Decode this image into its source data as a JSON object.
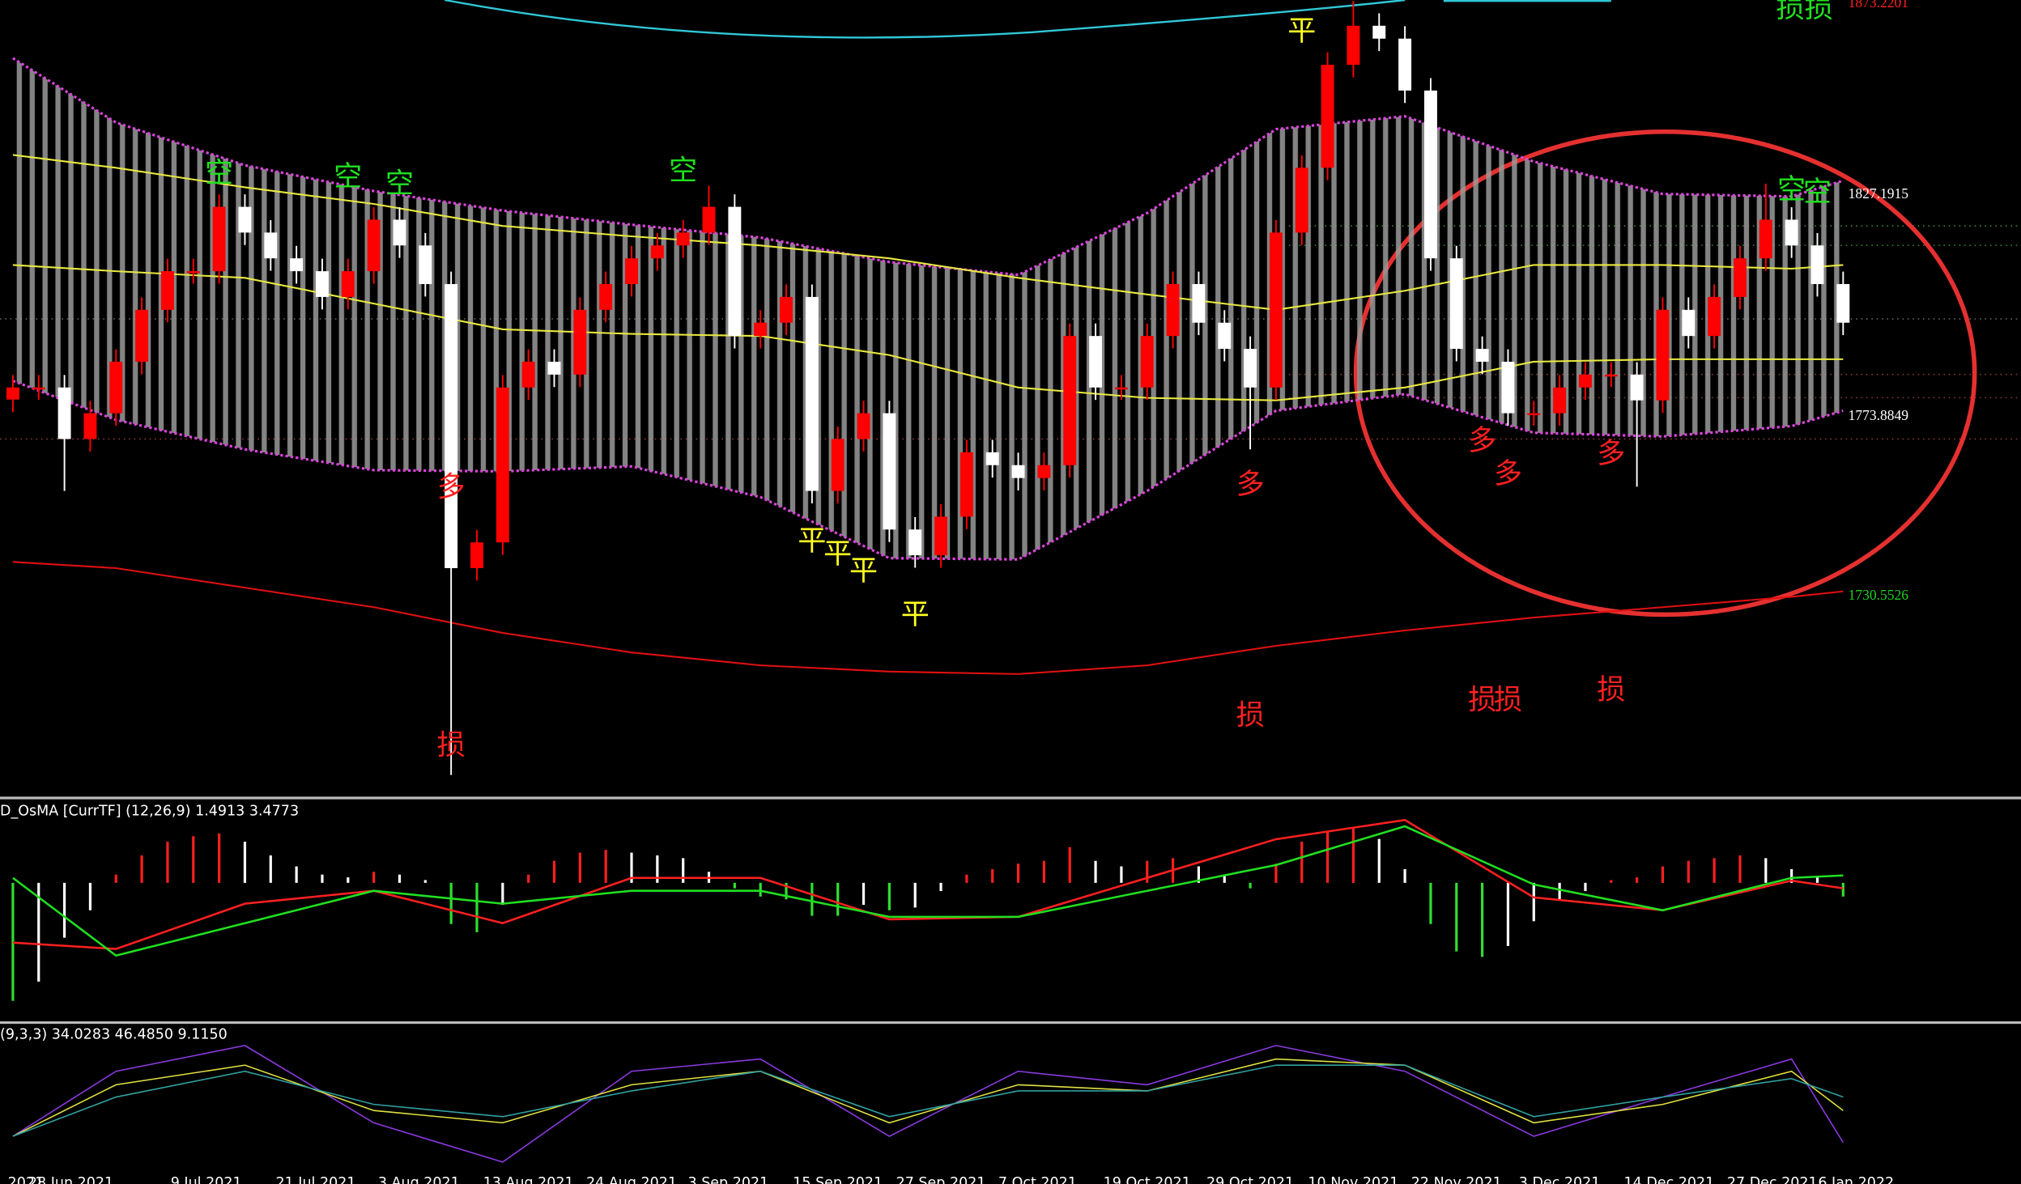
{
  "chart_data": [
    {
      "type": "candlestick",
      "up_color": "#ff0000",
      "down_color": "#ffffff",
      "ylim": [
        1683,
        1874.2
      ],
      "open": [
        1778.0,
        1780.9,
        1780.9,
        1768.5,
        1774.7,
        1787.1,
        1799.6,
        1808.9,
        1808.9,
        1824.4,
        1818.2,
        1812.0,
        1808.9,
        1802.7,
        1808.9,
        1821.3,
        1815.1,
        1805.8,
        1737.4,
        1743.6,
        1780.9,
        1787.1,
        1784.0,
        1799.6,
        1805.8,
        1812.0,
        1815.1,
        1818.2,
        1824.4,
        1793.3,
        1796.5,
        1802.7,
        1756.0,
        1768.5,
        1774.7,
        1746.7,
        1740.5,
        1749.8,
        1765.3,
        1762.2,
        1759.1,
        1762.2,
        1793.3,
        1780.9,
        1780.9,
        1793.3,
        1805.8,
        1796.5,
        1790.2,
        1780.9,
        1818.2,
        1833.8,
        1858.6,
        1868.0,
        1864.9,
        1852.4,
        1812.0,
        1790.2,
        1787.1,
        1774.7,
        1774.7,
        1780.9,
        1784.0,
        1784.0,
        1777.8,
        1799.6,
        1793.3,
        1802.7,
        1812.0,
        1821.3,
        1815.1,
        1805.8
      ],
      "high": [
        1783.9,
        1783.9,
        1783.9,
        1777.7,
        1790.1,
        1802.6,
        1811.9,
        1811.9,
        1827.4,
        1827.4,
        1821.2,
        1815.0,
        1811.9,
        1811.9,
        1824.3,
        1824.3,
        1818.1,
        1808.8,
        1746.6,
        1783.9,
        1790.1,
        1790.1,
        1802.6,
        1808.8,
        1815.0,
        1818.1,
        1821.2,
        1829.5,
        1827.4,
        1799.5,
        1805.7,
        1805.7,
        1771.5,
        1777.7,
        1777.7,
        1749.7,
        1752.8,
        1768.3,
        1768.3,
        1765.2,
        1765.2,
        1796.3,
        1796.3,
        1783.9,
        1796.3,
        1808.8,
        1808.8,
        1799.5,
        1793.2,
        1821.2,
        1836.8,
        1861.6,
        1874.0,
        1871.0,
        1867.9,
        1855.4,
        1815.0,
        1793.2,
        1790.1,
        1777.7,
        1783.9,
        1787.0,
        1787.0,
        1787.0,
        1802.6,
        1802.6,
        1805.7,
        1815.0,
        1830.0,
        1824.3,
        1818.1,
        1808.8
      ],
      "low": [
        1775.0,
        1777.9,
        1756.0,
        1765.5,
        1771.7,
        1784.1,
        1796.6,
        1805.9,
        1805.9,
        1815.2,
        1809.0,
        1805.9,
        1799.7,
        1799.7,
        1805.9,
        1812.1,
        1802.8,
        1687.6,
        1734.4,
        1740.6,
        1777.9,
        1781.0,
        1781.0,
        1796.6,
        1802.8,
        1809.0,
        1812.1,
        1815.2,
        1790.3,
        1790.3,
        1793.5,
        1753.0,
        1753.0,
        1765.5,
        1743.7,
        1737.5,
        1737.5,
        1746.8,
        1759.2,
        1756.1,
        1756.1,
        1759.2,
        1777.9,
        1777.9,
        1777.9,
        1790.3,
        1793.5,
        1787.2,
        1766.0,
        1777.9,
        1815.2,
        1830.8,
        1855.6,
        1861.9,
        1849.4,
        1809.0,
        1787.2,
        1784.1,
        1771.7,
        1771.7,
        1771.7,
        1777.9,
        1781.0,
        1757.0,
        1774.8,
        1790.3,
        1790.3,
        1799.7,
        1809.0,
        1812.1,
        1802.8,
        1793.5
      ],
      "close": [
        1780.9,
        1780.9,
        1768.5,
        1774.7,
        1787.1,
        1799.6,
        1808.9,
        1808.9,
        1824.4,
        1818.2,
        1812.0,
        1808.9,
        1802.7,
        1808.9,
        1821.3,
        1815.1,
        1805.8,
        1737.4,
        1743.6,
        1780.9,
        1787.1,
        1784.0,
        1799.6,
        1805.8,
        1812.0,
        1815.1,
        1818.2,
        1824.4,
        1793.3,
        1796.5,
        1802.7,
        1756.0,
        1768.5,
        1774.7,
        1746.7,
        1740.5,
        1749.8,
        1765.3,
        1762.2,
        1759.1,
        1762.2,
        1793.3,
        1780.9,
        1780.9,
        1793.3,
        1805.8,
        1796.5,
        1790.2,
        1780.9,
        1818.2,
        1833.8,
        1858.6,
        1868.0,
        1864.9,
        1852.4,
        1812.0,
        1790.2,
        1787.1,
        1774.7,
        1774.7,
        1780.9,
        1784.0,
        1784.0,
        1777.8,
        1799.6,
        1793.3,
        1802.7,
        1812.0,
        1821.3,
        1815.1,
        1805.8,
        1796.5
      ],
      "bands": {
        "color": "#dd44dd",
        "x": [
          1,
          5,
          10,
          15,
          20,
          25,
          30,
          35,
          40,
          45,
          50,
          55,
          60,
          65,
          70,
          72
        ],
        "upper": [
          1860.2,
          1844.7,
          1834.4,
          1828.2,
          1823.5,
          1820.1,
          1817.0,
          1811.1,
          1808.0,
          1822.9,
          1843.1,
          1846.2,
          1835.3,
          1827.5,
          1826.9,
          1830.7
        ],
        "lower": [
          1782.5,
          1773.1,
          1766.0,
          1761.0,
          1760.7,
          1761.9,
          1754.5,
          1739.8,
          1739.5,
          1756.0,
          1775.3,
          1779.3,
          1770.0,
          1769.1,
          1771.6,
          1775.3
        ]
      },
      "lines": [
        {
          "color": "#e8e840",
          "x": [
            1,
            5,
            10,
            15,
            20,
            25,
            30,
            35,
            40,
            45,
            50,
            55,
            60,
            65,
            70,
            72
          ],
          "values": [
            1836.9,
            1833.8,
            1829.1,
            1825.1,
            1819.8,
            1817.3,
            1815.1,
            1812.0,
            1807.3,
            1803.3,
            1799.6,
            1804.2,
            1810.4,
            1810.4,
            1809.5,
            1810.4
          ]
        },
        {
          "color": "#e8e840",
          "x": [
            1,
            5,
            10,
            15,
            20,
            25,
            30,
            35,
            40,
            45,
            50,
            55,
            60,
            65,
            70,
            72
          ],
          "values": [
            1810.4,
            1808.9,
            1807.3,
            1801.1,
            1794.9,
            1793.8,
            1793.3,
            1788.7,
            1780.9,
            1778.4,
            1777.8,
            1780.9,
            1787.1,
            1787.7,
            1787.7,
            1787.7
          ]
        },
        {
          "color": "#e01010",
          "x": [
            1,
            5,
            10,
            15,
            20,
            25,
            30,
            35,
            40,
            45,
            50,
            55,
            60,
            65,
            70,
            72
          ],
          "values": [
            1738.9,
            1737.4,
            1732.7,
            1728.0,
            1721.8,
            1717.1,
            1714.0,
            1712.5,
            1711.9,
            1714.0,
            1718.7,
            1722.4,
            1725.5,
            1728.0,
            1730.5,
            1731.8
          ]
        }
      ],
      "yticks": [
        1873.2201,
        1827.1915,
        1773.8849,
        1730.5526
      ],
      "ytick_colors": [
        "#ff2020",
        "#ffffff",
        "#ffffff",
        "#20d020"
      ],
      "xticks": [
        {
          "value": 1.5,
          "label": "2021"
        },
        {
          "value": 3.25,
          "label": "28 Jun 2021"
        },
        {
          "value": 8.5,
          "label": "9 Jul 2021"
        },
        {
          "value": 12.75,
          "label": "21 Jul 2021"
        },
        {
          "value": 16.75,
          "label": "3 Aug 2021"
        },
        {
          "value": 21,
          "label": "13 Aug 2021"
        },
        {
          "value": 25,
          "label": "24 Aug 2021"
        },
        {
          "value": 28.75,
          "label": "3 Sep 2021"
        },
        {
          "value": 33,
          "label": "15 Sep 2021"
        },
        {
          "value": 37,
          "label": "27 Sep 2021"
        },
        {
          "value": 40.75,
          "label": "7 Oct 2021"
        },
        {
          "value": 45,
          "label": "19 Oct 2021"
        },
        {
          "value": 49,
          "label": "29 Oct 2021"
        },
        {
          "value": 53,
          "label": "10 Nov 2021"
        },
        {
          "value": 57,
          "label": "22 Nov 2021"
        },
        {
          "value": 61,
          "label": "3 Dec 2021"
        },
        {
          "value": 65.25,
          "label": "14 Dec 2021"
        },
        {
          "value": 69.25,
          "label": "27 Dec 2021"
        },
        {
          "value": 72.5,
          "label": "6 Jan 2022"
        }
      ],
      "signals": [
        {
          "text": "空",
          "index": 9,
          "price": 1832.2,
          "color": "#20e020"
        },
        {
          "text": "空",
          "index": 14,
          "price": 1831.3,
          "color": "#20e020"
        },
        {
          "text": "空",
          "index": 16,
          "price": 1829.7,
          "color": "#20e020"
        },
        {
          "text": "空",
          "index": 27,
          "price": 1832.8,
          "color": "#20e020"
        },
        {
          "text": "空",
          "index": 70,
          "price": 1828.2,
          "color": "#20e020"
        },
        {
          "text": "空",
          "index": 71,
          "price": 1827.6,
          "color": "#20e020"
        },
        {
          "text": "损损",
          "index": 70.5,
          "price": 1872.0,
          "color": "#20e020"
        },
        {
          "text": "多",
          "index": 18,
          "price": 1756.6,
          "color": "#ff2020"
        },
        {
          "text": "多",
          "index": 49,
          "price": 1757.3,
          "color": "#ff2020"
        },
        {
          "text": "多",
          "index": 58,
          "price": 1767.8,
          "color": "#ff2020"
        },
        {
          "text": "多",
          "index": 59,
          "price": 1759.8,
          "color": "#ff2020"
        },
        {
          "text": "多",
          "index": 63,
          "price": 1764.7,
          "color": "#ff2020"
        },
        {
          "text": "平",
          "index": 32,
          "price": 1743.6,
          "color": "#ffff20"
        },
        {
          "text": "平",
          "index": 33,
          "price": 1740.5,
          "color": "#ffff20"
        },
        {
          "text": "平",
          "index": 34,
          "price": 1736.4,
          "color": "#ffff20"
        },
        {
          "text": "平",
          "index": 36,
          "price": 1725.9,
          "color": "#ffff20"
        },
        {
          "text": "平",
          "index": 51,
          "price": 1866.4,
          "color": "#ffff20"
        },
        {
          "text": "损",
          "index": 18,
          "price": 1694.4,
          "color": "#ff2020"
        },
        {
          "text": "损",
          "index": 49,
          "price": 1701.6,
          "color": "#ff2020"
        },
        {
          "text": "损",
          "index": 58,
          "price": 1705.3,
          "color": "#ff2020"
        },
        {
          "text": "损",
          "index": 59,
          "price": 1705.3,
          "color": "#ff2020"
        },
        {
          "text": "损",
          "index": 63,
          "price": 1707.8,
          "color": "#ff2020"
        }
      ]
    },
    {
      "type": "osma",
      "title": "D_OsMA [CurrTF] (12,26,9) 1.4913 3.4773",
      "ylim": [
        -5,
        3
      ],
      "values": [
        -4.3,
        -3.6,
        -2.0,
        -1.0,
        0.3,
        1.0,
        1.5,
        1.7,
        1.8,
        1.5,
        1.0,
        0.6,
        0.3,
        0.2,
        0.4,
        0.3,
        0.1,
        -1.5,
        -1.8,
        -0.8,
        0.3,
        0.8,
        1.1,
        1.2,
        1.1,
        1.0,
        0.9,
        0.4,
        -0.2,
        -0.5,
        -0.6,
        -1.2,
        -1.2,
        -0.8,
        -1.0,
        -0.9,
        -0.3,
        0.3,
        0.5,
        0.7,
        0.8,
        1.3,
        0.8,
        0.6,
        0.8,
        0.9,
        0.6,
        0.3,
        -0.2,
        0.7,
        1.5,
        1.9,
        2.0,
        1.6,
        0.5,
        -1.5,
        -2.5,
        -2.7,
        -2.3,
        -1.4,
        -0.6,
        -0.3,
        0.1,
        0.2,
        0.6,
        0.8,
        0.9,
        1.0,
        0.9,
        0.5,
        0.2,
        -0.5
      ],
      "series": [
        {
          "color": "#ff2020",
          "x": [
            1,
            5,
            10,
            15,
            20,
            25,
            30,
            35,
            40,
            45,
            50,
            55,
            60,
            65,
            70,
            72
          ],
          "values": [
            -2.18,
            -2.41,
            -0.76,
            -0.29,
            -1.47,
            0.18,
            0.18,
            -1.33,
            -1.24,
            0.18,
            1.59,
            2.29,
            -0.53,
            -1.0,
            0.08,
            -0.2
          ]
        },
        {
          "color": "#20e020",
          "x": [
            1,
            5,
            10,
            15,
            20,
            25,
            30,
            35,
            40,
            45,
            50,
            55,
            60,
            65,
            70,
            72
          ],
          "values": [
            0.18,
            -2.65,
            -1.47,
            -0.29,
            -0.76,
            -0.29,
            -0.29,
            -1.24,
            -1.24,
            -0.29,
            0.65,
            2.06,
            -0.06,
            -1.0,
            0.18,
            0.27
          ]
        }
      ]
    },
    {
      "type": "stochastic",
      "title": "(9,3,3) 34.0283 46.4850 9.1150",
      "ylim": [
        0,
        100
      ],
      "series": [
        {
          "color": "#8a3ae0",
          "x": [
            1,
            5,
            10,
            15,
            20,
            25,
            30,
            35,
            40,
            45,
            50,
            55,
            60,
            65,
            70,
            72
          ],
          "values": [
            21,
            74,
            95,
            32,
            0,
            74,
            84,
            21,
            74,
            63,
            95,
            74,
            21,
            53,
            84,
            16
          ]
        },
        {
          "color": "#e0e040",
          "x": [
            1,
            5,
            10,
            15,
            20,
            25,
            30,
            35,
            40,
            45,
            50,
            55,
            60,
            65,
            70,
            72
          ],
          "values": [
            21,
            63,
            79,
            42,
            32,
            63,
            74,
            32,
            63,
            58,
            84,
            79,
            32,
            47,
            74,
            42
          ]
        },
        {
          "color": "#30a0a0",
          "x": [
            1,
            5,
            10,
            15,
            20,
            25,
            30,
            35,
            40,
            45,
            50,
            55,
            60,
            65,
            70,
            72
          ],
          "values": [
            21,
            53,
            74,
            47,
            37,
            58,
            74,
            37,
            58,
            58,
            79,
            79,
            37,
            53,
            68,
            53
          ]
        }
      ]
    }
  ]
}
